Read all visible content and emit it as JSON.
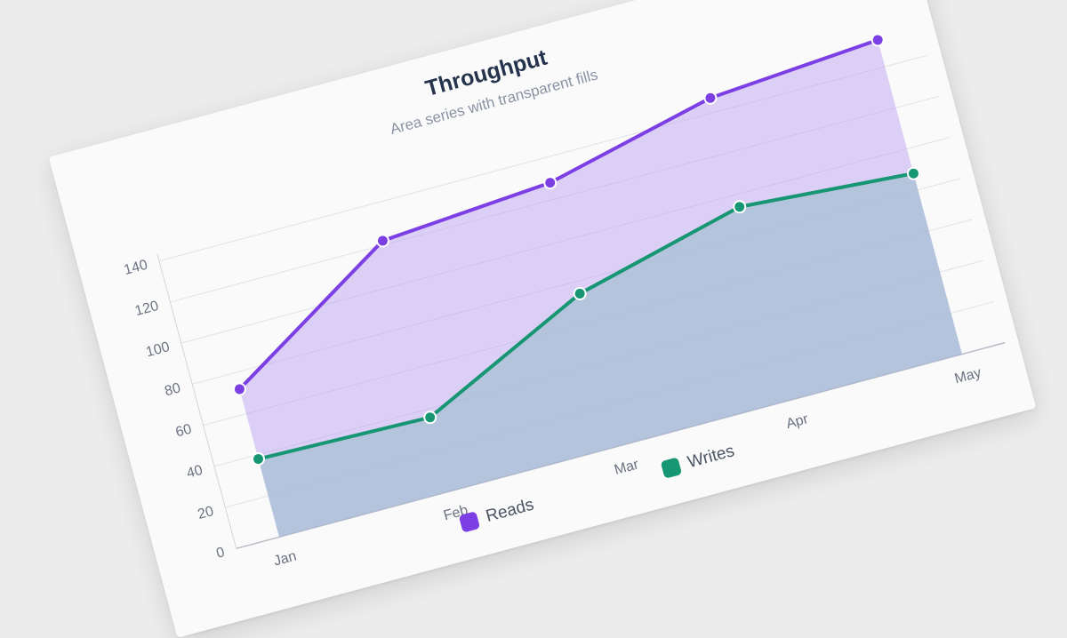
{
  "chart_data": {
    "type": "area",
    "title": "Throughput",
    "subtitle": "Area series with transparent fills",
    "xlabel": "",
    "ylabel": "",
    "categories": [
      "Jan",
      "Feb",
      "Mar",
      "Apr",
      "May"
    ],
    "ylim": [
      0,
      140
    ],
    "yticks": [
      0,
      20,
      40,
      60,
      80,
      100,
      120,
      140
    ],
    "grid": true,
    "legend_position": "bottom-center",
    "series": [
      {
        "name": "Reads",
        "color": "#7b3fe4",
        "fill": "#b99bf2",
        "values": [
          72,
          122,
          128,
          147,
          153
        ]
      },
      {
        "name": "Writes",
        "color": "#169672",
        "fill": "#9fbfd0",
        "values": [
          38,
          36,
          74,
          94,
          88
        ]
      }
    ]
  }
}
